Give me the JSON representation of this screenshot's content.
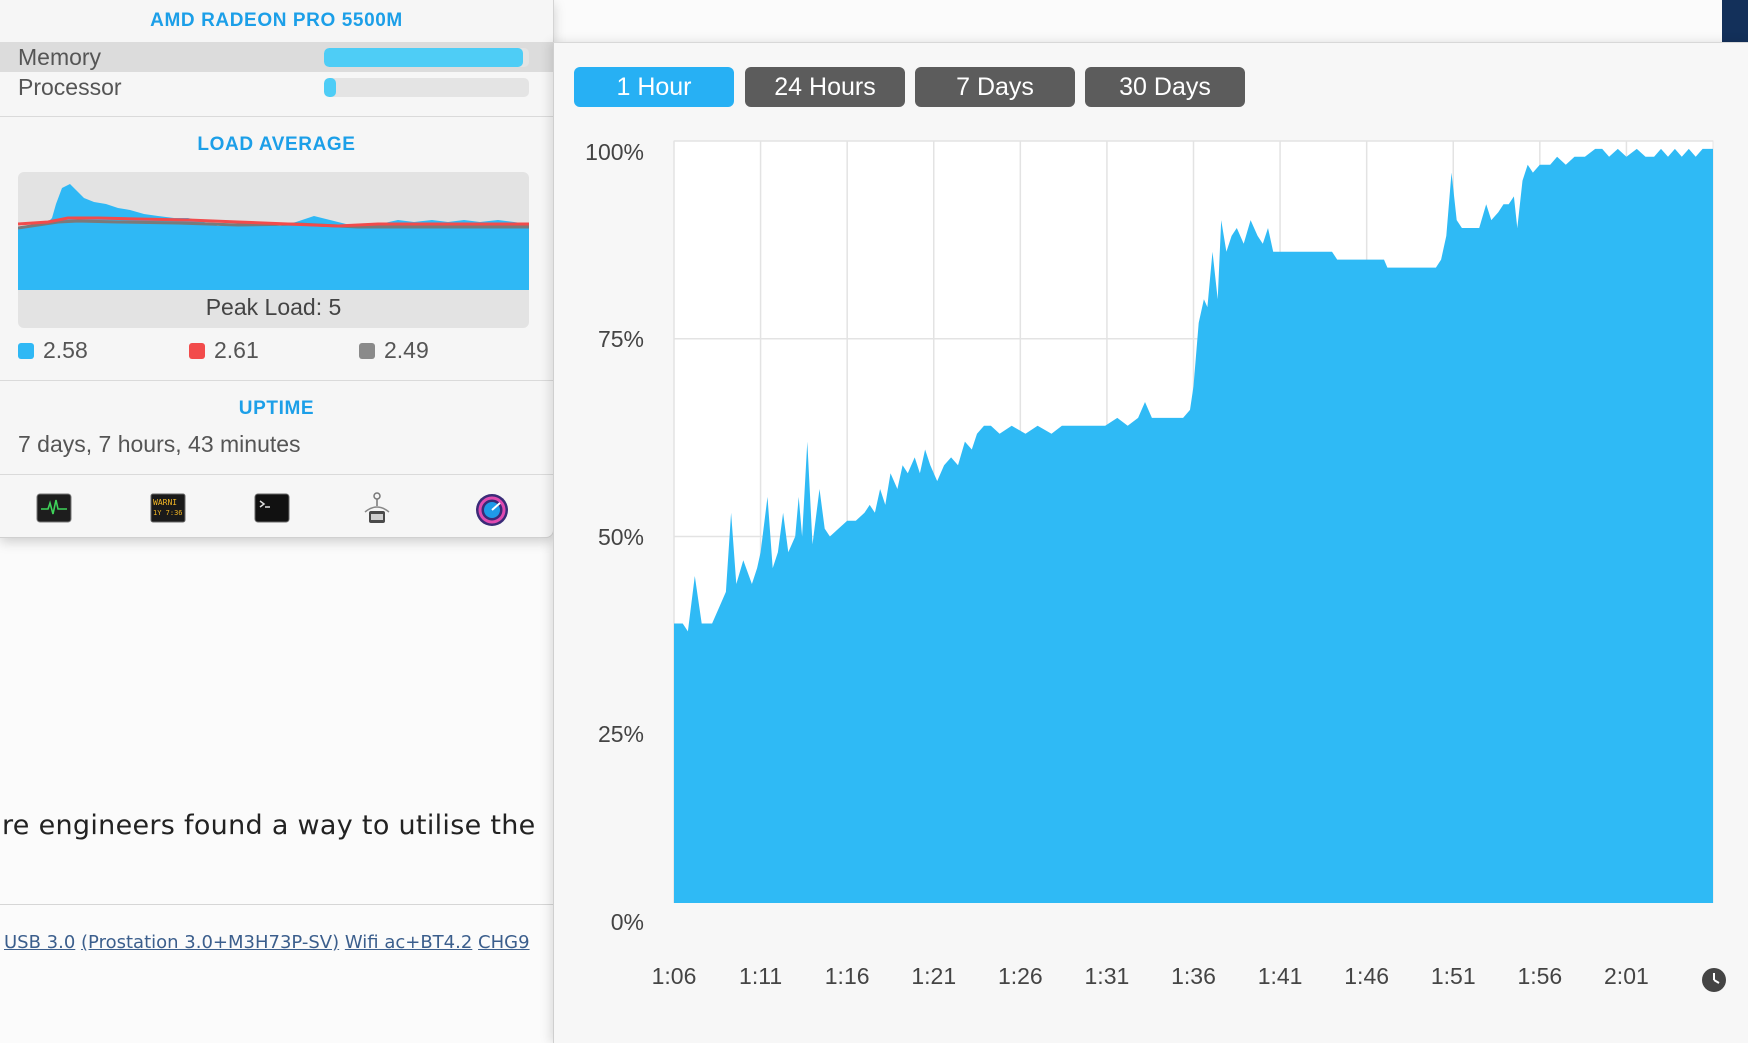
{
  "gpu_panel": {
    "title": "AMD RADEON PRO 5500M",
    "gauges": [
      {
        "label": "Memory",
        "level_percent": 97
      },
      {
        "label": "Processor",
        "level_percent": 6
      }
    ]
  },
  "load_average": {
    "title": "LOAD AVERAGE",
    "peak_label": "Peak Load: 5",
    "legend": [
      {
        "value": "2.58",
        "color": "#2fb8f5"
      },
      {
        "value": "2.61",
        "color": "#f24b4b"
      },
      {
        "value": "2.49",
        "color": "#8a8a8a"
      }
    ]
  },
  "uptime": {
    "title": "UPTIME",
    "value": "7 days, 7 hours, 43 minutes"
  },
  "toolbar_icons": [
    "activity-monitor-icon",
    "console-icon",
    "terminal-icon",
    "ram-cleaner-icon",
    "istatistica-icon"
  ],
  "history": {
    "ranges": [
      {
        "label": "1 Hour",
        "active": true
      },
      {
        "label": "24 Hours",
        "active": false
      },
      {
        "label": "7 Days",
        "active": false
      },
      {
        "label": "30 Days",
        "active": false
      }
    ],
    "clock_icon": "clock-icon"
  },
  "background_page": {
    "text": "re engineers found a way to utilise the",
    "links": [
      "USB 3.0",
      "(Prostation 3.0+M3H73P-SV)",
      "Wifi ac+BT4.2",
      "CHG9"
    ]
  },
  "chart_data": {
    "type": "area",
    "color": "#2fbaf5",
    "ylim": [
      0,
      100
    ],
    "y_ticks": [
      "0%",
      "25%",
      "50%",
      "75%",
      "100%"
    ],
    "x_ticks": [
      "1:06",
      "1:11",
      "1:16",
      "1:21",
      "1:26",
      "1:31",
      "1:36",
      "1:41",
      "1:46",
      "1:51",
      "1:56",
      "2:01"
    ],
    "x_range_minutes": [
      0,
      60
    ],
    "points": [
      [
        0,
        39
      ],
      [
        0.5,
        39
      ],
      [
        0.8,
        38
      ],
      [
        1.2,
        45
      ],
      [
        1.6,
        39
      ],
      [
        2.2,
        39
      ],
      [
        2.6,
        41
      ],
      [
        3.0,
        43
      ],
      [
        3.3,
        53
      ],
      [
        3.6,
        44
      ],
      [
        4.0,
        47
      ],
      [
        4.5,
        44
      ],
      [
        4.8,
        46
      ],
      [
        5.0,
        48
      ],
      [
        5.4,
        55
      ],
      [
        5.7,
        46
      ],
      [
        6.0,
        48
      ],
      [
        6.3,
        53
      ],
      [
        6.6,
        48
      ],
      [
        7.0,
        50
      ],
      [
        7.2,
        55
      ],
      [
        7.4,
        50
      ],
      [
        7.7,
        62
      ],
      [
        8.0,
        49
      ],
      [
        8.4,
        56
      ],
      [
        8.7,
        51
      ],
      [
        9.0,
        50
      ],
      [
        9.5,
        51
      ],
      [
        10.0,
        52
      ],
      [
        10.5,
        52
      ],
      [
        11.0,
        53
      ],
      [
        11.3,
        54
      ],
      [
        11.6,
        53
      ],
      [
        11.9,
        56
      ],
      [
        12.2,
        54
      ],
      [
        12.5,
        58
      ],
      [
        12.9,
        56
      ],
      [
        13.2,
        59
      ],
      [
        13.5,
        58
      ],
      [
        13.9,
        60
      ],
      [
        14.2,
        58
      ],
      [
        14.5,
        61
      ],
      [
        14.8,
        59
      ],
      [
        15.2,
        57
      ],
      [
        15.6,
        59
      ],
      [
        16.0,
        60
      ],
      [
        16.4,
        59
      ],
      [
        16.8,
        62
      ],
      [
        17.2,
        61
      ],
      [
        17.5,
        63
      ],
      [
        17.9,
        64
      ],
      [
        18.3,
        64
      ],
      [
        18.8,
        63
      ],
      [
        19.5,
        64
      ],
      [
        20.3,
        63
      ],
      [
        21.0,
        64
      ],
      [
        21.8,
        63
      ],
      [
        22.4,
        64
      ],
      [
        23.0,
        64
      ],
      [
        23.6,
        64
      ],
      [
        24.2,
        64
      ],
      [
        24.9,
        64
      ],
      [
        25.6,
        65
      ],
      [
        26.2,
        64
      ],
      [
        26.8,
        65
      ],
      [
        27.2,
        67
      ],
      [
        27.6,
        65
      ],
      [
        28.2,
        65
      ],
      [
        28.8,
        65
      ],
      [
        29.4,
        65
      ],
      [
        29.8,
        66
      ],
      [
        30.0,
        69
      ],
      [
        30.3,
        77
      ],
      [
        30.6,
        80
      ],
      [
        30.8,
        79
      ],
      [
        31.1,
        86
      ],
      [
        31.4,
        80
      ],
      [
        31.6,
        90
      ],
      [
        31.9,
        86
      ],
      [
        32.2,
        88
      ],
      [
        32.5,
        89
      ],
      [
        32.9,
        87
      ],
      [
        33.3,
        90
      ],
      [
        33.7,
        88
      ],
      [
        34.0,
        87
      ],
      [
        34.3,
        89
      ],
      [
        34.6,
        86
      ],
      [
        35.0,
        86
      ],
      [
        36.5,
        86
      ],
      [
        38.0,
        86
      ],
      [
        38.3,
        85
      ],
      [
        39.5,
        85
      ],
      [
        40.0,
        85
      ],
      [
        40.6,
        85
      ],
      [
        41.0,
        85
      ],
      [
        41.2,
        84
      ],
      [
        42.5,
        84
      ],
      [
        43.5,
        84
      ],
      [
        44.0,
        84
      ],
      [
        44.3,
        85
      ],
      [
        44.6,
        88
      ],
      [
        44.9,
        96
      ],
      [
        45.2,
        90
      ],
      [
        45.5,
        89
      ],
      [
        46.5,
        89
      ],
      [
        46.9,
        92
      ],
      [
        47.2,
        90
      ],
      [
        47.6,
        91
      ],
      [
        47.9,
        92
      ],
      [
        48.2,
        92
      ],
      [
        48.5,
        93
      ],
      [
        48.7,
        89
      ],
      [
        49.0,
        95
      ],
      [
        49.3,
        97
      ],
      [
        49.6,
        96
      ],
      [
        50.0,
        97
      ],
      [
        50.6,
        97
      ],
      [
        51.0,
        98
      ],
      [
        51.5,
        97
      ],
      [
        52.0,
        98
      ],
      [
        52.6,
        98
      ],
      [
        53.2,
        99
      ],
      [
        53.6,
        99
      ],
      [
        54.0,
        98
      ],
      [
        54.5,
        99
      ],
      [
        55.0,
        98
      ],
      [
        55.6,
        99
      ],
      [
        56.1,
        98
      ],
      [
        56.6,
        98
      ],
      [
        57.0,
        99
      ],
      [
        57.4,
        98
      ],
      [
        57.8,
        99
      ],
      [
        58.2,
        98
      ],
      [
        58.6,
        99
      ],
      [
        59.0,
        98
      ],
      [
        59.4,
        99
      ],
      [
        60.0,
        99
      ]
    ]
  }
}
